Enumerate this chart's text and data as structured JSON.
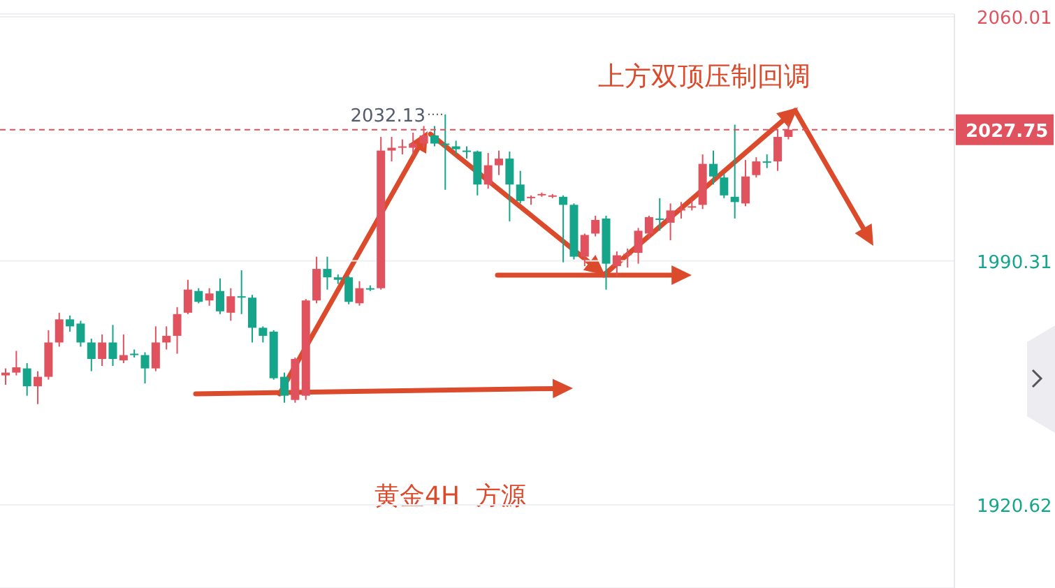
{
  "chart_data": {
    "type": "candlestick",
    "categories": [
      null,
      null,
      null,
      null,
      null,
      null,
      null,
      null,
      null,
      null,
      null,
      null,
      null,
      null,
      null,
      null,
      null,
      null,
      null,
      null,
      null,
      null,
      null,
      null,
      null,
      null,
      null,
      null,
      null,
      null,
      null,
      null,
      null,
      null,
      null,
      null,
      null,
      null,
      null,
      null,
      null,
      null,
      null,
      null,
      null,
      null,
      null,
      null,
      null,
      null,
      null,
      null,
      null,
      null,
      null,
      null,
      null,
      null,
      null,
      null,
      null,
      null,
      null,
      null,
      null,
      null,
      null,
      null,
      null,
      null,
      null,
      null,
      null,
      null,
      null,
      null,
      null,
      null,
      null,
      null,
      null,
      null,
      null,
      null,
      null,
      null,
      null,
      null,
      null
    ],
    "ohlc": [
      [
        1957.6,
        1959.6,
        1954.9,
        1958.4
      ],
      [
        1958.4,
        1964.6,
        1957.6,
        1959.9
      ],
      [
        1959.6,
        1961.1,
        1951.8,
        1954.5
      ],
      [
        1954.5,
        1958.8,
        1949.4,
        1957.2
      ],
      [
        1957.2,
        1970.5,
        1956.4,
        1967.0
      ],
      [
        1967.0,
        1975.5,
        1965.8,
        1973.6
      ],
      [
        1973.6,
        1974.7,
        1970.1,
        1971.6
      ],
      [
        1972.4,
        1973.2,
        1965.8,
        1967.0
      ],
      [
        1967.0,
        1968.1,
        1958.8,
        1962.3
      ],
      [
        1962.3,
        1969.3,
        1960.3,
        1967.0
      ],
      [
        1967.0,
        1972.0,
        1960.3,
        1962.3
      ],
      [
        1961.9,
        1969.3,
        1961.1,
        1963.4
      ],
      [
        1963.8,
        1965.0,
        1962.7,
        1963.4
      ],
      [
        1963.4,
        1964.2,
        1955.3,
        1959.6
      ],
      [
        1959.6,
        1971.6,
        1958.8,
        1967.0
      ],
      [
        1967.0,
        1971.6,
        1965.0,
        1968.9
      ],
      [
        1968.9,
        1977.1,
        1963.8,
        1975.1
      ],
      [
        1975.5,
        1984.9,
        1975.1,
        1982.1
      ],
      [
        1981.7,
        1982.5,
        1978.2,
        1978.6
      ],
      [
        1979.0,
        1982.5,
        1977.5,
        1981.0
      ],
      [
        1981.7,
        1985.3,
        1975.1,
        1975.9
      ],
      [
        1975.5,
        1982.5,
        1973.2,
        1980.2
      ],
      [
        1980.2,
        1987.6,
        1975.1,
        1979.8
      ],
      [
        1979.8,
        1980.6,
        1967.0,
        1971.2
      ],
      [
        1971.2,
        1971.6,
        1967.0,
        1968.9
      ],
      [
        1970.1,
        1970.5,
        1956.4,
        1956.8
      ],
      [
        1957.2,
        1958.4,
        1949.8,
        1951.8
      ],
      [
        1950.6,
        1962.7,
        1949.8,
        1962.3
      ],
      [
        1951.8,
        1979.4,
        1950.6,
        1979.0
      ],
      [
        1979.0,
        1991.5,
        1978.2,
        1988.0
      ],
      [
        1988.0,
        1991.5,
        1982.1,
        1985.6
      ],
      [
        1985.6,
        1986.4,
        1983.7,
        1984.9
      ],
      [
        1985.6,
        1986.0,
        1977.9,
        1978.6
      ],
      [
        1978.2,
        1984.5,
        1977.5,
        1982.5
      ],
      [
        1982.5,
        1983.3,
        1981.7,
        1982.1
      ],
      [
        1982.5,
        2025.7,
        1982.1,
        2021.8
      ],
      [
        2021.8,
        2025.7,
        2018.7,
        2022.6
      ],
      [
        2022.6,
        2025.0,
        2020.7,
        2023.0
      ],
      [
        2022.6,
        2026.9,
        2020.3,
        2023.8
      ],
      [
        2023.8,
        2028.8,
        2022.6,
        2026.1
      ],
      [
        2026.1,
        2028.8,
        2023.0,
        2023.8
      ],
      [
        2023.8,
        2032.13,
        2010.6,
        2023.4
      ],
      [
        2023.0,
        2024.6,
        2020.7,
        2022.2
      ],
      [
        2021.8,
        2023.0,
        2019.5,
        2021.5
      ],
      [
        2021.5,
        2021.8,
        2009.0,
        2012.1
      ],
      [
        2012.1,
        2021.1,
        2010.9,
        2017.6
      ],
      [
        2017.6,
        2021.8,
        2014.8,
        2019.5
      ],
      [
        2019.5,
        2021.5,
        2001.6,
        2012.1
      ],
      [
        2012.1,
        2016.0,
        2006.7,
        2007.4
      ],
      [
        2008.2,
        2009.0,
        2006.3,
        2008.6
      ],
      [
        2009.0,
        2009.8,
        2008.6,
        2009.4
      ],
      [
        2008.6,
        2009.4,
        2008.2,
        2009.0
      ],
      [
        2008.6,
        2009.0,
        1989.9,
        2006.3
      ],
      [
        2006.3,
        2006.7,
        1990.7,
        1991.5
      ],
      [
        1991.5,
        1998.1,
        1988.8,
        1997.7
      ],
      [
        1998.1,
        2003.2,
        1997.3,
        2002.0
      ],
      [
        2002.4,
        2003.2,
        1982.1,
        1989.5
      ],
      [
        1988.8,
        1993.0,
        1986.0,
        1991.9
      ],
      [
        1991.9,
        1993.8,
        1988.4,
        1992.3
      ],
      [
        1992.6,
        1999.7,
        1989.5,
        1998.9
      ],
      [
        1998.1,
        2003.2,
        1996.5,
        2002.8
      ],
      [
        2002.4,
        2008.2,
        1998.9,
        2002.0
      ],
      [
        2001.2,
        2006.7,
        1996.2,
        2004.7
      ],
      [
        2004.7,
        2007.1,
        2002.4,
        2005.1
      ],
      [
        2005.5,
        2007.8,
        2004.7,
        2005.9
      ],
      [
        2006.3,
        2020.7,
        2005.1,
        2018.0
      ],
      [
        2018.0,
        2021.8,
        2012.1,
        2014.4
      ],
      [
        2014.1,
        2015.2,
        2008.2,
        2009.0
      ],
      [
        2008.6,
        2029.2,
        2002.4,
        2007.1
      ],
      [
        2006.7,
        2019.1,
        2005.9,
        2014.4
      ],
      [
        2014.8,
        2019.9,
        2014.1,
        2018.7
      ],
      [
        2018.7,
        2020.7,
        2016.8,
        2018.4
      ],
      [
        2018.7,
        2027.7,
        2016.0,
        2025.7
      ],
      [
        2025.7,
        2029.6,
        2025.0,
        2027.75
      ],
      null,
      null,
      null,
      null,
      null,
      null,
      null,
      null,
      null,
      null,
      null,
      null,
      null,
      null,
      null
    ],
    "colors": [
      "#e0525e",
      "#e0525e",
      "#14a58a",
      "#e0525e",
      "#e0525e",
      "#e0525e",
      "#14a58a",
      "#14a58a",
      "#14a58a",
      "#e0525e",
      "#14a58a",
      "#e0525e",
      "#14a58a",
      "#14a58a",
      "#e0525e",
      "#e0525e",
      "#e0525e",
      "#e0525e",
      "#14a58a",
      "#e0525e",
      "#14a58a",
      "#e0525e",
      "#14a58a",
      "#14a58a",
      "#14a58a",
      "#14a58a",
      "#14a58a",
      "#e0525e",
      "#e0525e",
      "#e0525e",
      "#14a58a",
      "#14a58a",
      "#14a58a",
      "#e0525e",
      "#14a58a",
      "#e0525e",
      "#e0525e",
      "#e0525e",
      "#e0525e",
      "#e0525e",
      "#14a58a",
      "#14a58a",
      "#14a58a",
      "#14a58a",
      "#14a58a",
      "#e0525e",
      "#e0525e",
      "#14a58a",
      "#14a58a",
      "#e0525e",
      "#e0525e",
      "#e0525e",
      "#14a58a",
      "#14a58a",
      "#e0525e",
      "#e0525e",
      "#14a58a",
      "#e0525e",
      "#e0525e",
      "#e0525e",
      "#e0525e",
      "#14a58a",
      "#e0525e",
      "#e0525e",
      "#e0525e",
      "#e0525e",
      "#14a58a",
      "#14a58a",
      "#14a58a",
      "#e0525e",
      "#e0525e",
      "#14a58a",
      "#e0525e",
      "#e0525e",
      null,
      null,
      null,
      null,
      null,
      null,
      null,
      null,
      null,
      null,
      null,
      null,
      null,
      null,
      null
    ],
    "ylim": [
      1896.9,
      2060.8
    ],
    "yticks": [
      1920.62,
      1990.31,
      2060.01
    ],
    "grid": "y",
    "tick_labels": "y",
    "ref_lines": [
      {
        "axis": "y",
        "value": 2027.75,
        "label": "2027.75",
        "color": "#e0525e",
        "line_style": "dashed"
      }
    ],
    "annotations": [
      "2032.13",
      "上方双顶压制回调",
      "黄金4H  方源"
    ]
  }
}
